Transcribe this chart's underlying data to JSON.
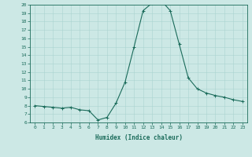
{
  "xlabel": "Humidex (Indice chaleur)",
  "ylabel": "",
  "x_values": [
    0,
    1,
    2,
    3,
    4,
    5,
    6,
    7,
    8,
    9,
    10,
    11,
    12,
    13,
    14,
    15,
    16,
    17,
    18,
    19,
    20,
    21,
    22,
    23
  ],
  "y_values": [
    8.0,
    7.9,
    7.8,
    7.7,
    7.8,
    7.5,
    7.4,
    6.3,
    6.6,
    8.3,
    10.8,
    15.0,
    19.3,
    20.2,
    20.5,
    19.3,
    15.3,
    11.3,
    10.0,
    9.5,
    9.2,
    9.0,
    8.7,
    8.5
  ],
  "ylim": [
    6,
    20
  ],
  "xlim": [
    -0.5,
    23.5
  ],
  "yticks": [
    6,
    7,
    8,
    9,
    10,
    11,
    12,
    13,
    14,
    15,
    16,
    17,
    18,
    19,
    20
  ],
  "xticks": [
    0,
    1,
    2,
    3,
    4,
    5,
    6,
    7,
    8,
    9,
    10,
    11,
    12,
    13,
    14,
    15,
    16,
    17,
    18,
    19,
    20,
    21,
    22,
    23
  ],
  "line_color": "#1a6b5a",
  "marker": "+",
  "bg_color": "#cce8e5",
  "grid_color": "#aad4d0",
  "axis_color": "#1a6b5a",
  "tick_fontsize": 4.5,
  "xlabel_fontsize": 5.5,
  "linewidth": 0.8,
  "markersize": 2.5,
  "markeredgewidth": 0.7
}
